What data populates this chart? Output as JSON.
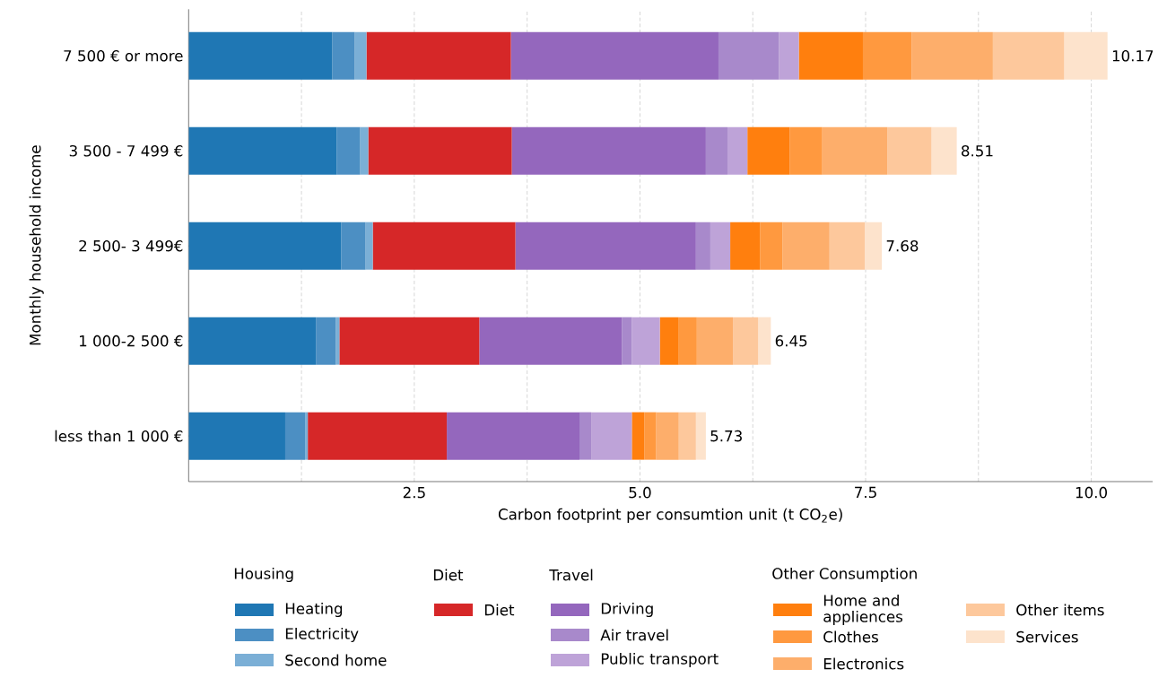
{
  "chart_data": {
    "type": "bar",
    "orientation": "horizontal",
    "stacked": true,
    "categories": [
      "7 500 € or more",
      "3 500 - 7 499 €",
      "2 500- 3 499€",
      "1 000-2 500 €",
      "less than 1 000 €"
    ],
    "xlabel": "Carbon footprint per consumtion unit (t CO$_{2}$e)",
    "ylabel": "Monthly household income",
    "xlim": [
      0,
      10.68
    ],
    "xticks": [
      {
        "value": 1.25,
        "label": null
      },
      2.5,
      {
        "value": 3.75,
        "label": null
      },
      {
        "value": 5,
        "label": "5.0"
      },
      {
        "value": 6.25,
        "label": null
      },
      7.5,
      {
        "value": 8.75,
        "label": null
      },
      {
        "value": 10,
        "label": "10.0"
      }
    ],
    "grid": "x",
    "legend": "bottom",
    "annotations": [
      "Housing",
      "Diet",
      "Travel",
      "Other Consumption"
    ],
    "totals": [
      "10.17",
      "8.51",
      "7.68",
      "6.45",
      "5.73"
    ],
    "series": [
      {
        "name": "Heating",
        "color": "#1f77b4",
        "values": [
          1.59,
          1.64,
          1.69,
          1.41,
          1.07
        ]
      },
      {
        "name": "Electricity",
        "color": "#4c8fc3",
        "values": [
          0.25,
          0.26,
          0.27,
          0.22,
          0.22
        ]
      },
      {
        "name": "Second home",
        "color": "#7bafd6",
        "values": [
          0.13,
          0.09,
          0.08,
          0.04,
          0.03
        ]
      },
      {
        "name": "Diet",
        "color": "#d62728",
        "values": [
          1.6,
          1.59,
          1.58,
          1.55,
          1.54
        ]
      },
      {
        "name": "Driving",
        "color": "#9467bd",
        "values": [
          2.3,
          2.15,
          2.0,
          1.58,
          1.47
        ]
      },
      {
        "name": "Air travel",
        "color": "#a889cb",
        "values": [
          0.67,
          0.24,
          0.16,
          0.11,
          0.13
        ]
      },
      {
        "name": "Public transport",
        "color": "#bea3d8",
        "values": [
          0.22,
          0.22,
          0.22,
          0.31,
          0.45
        ]
      },
      {
        "name": "Home and appliences",
        "color": "#ff7f0e",
        "values": [
          0.71,
          0.47,
          0.33,
          0.21,
          0.14
        ]
      },
      {
        "name": "Clothes",
        "color": "#ff993f",
        "values": [
          0.54,
          0.36,
          0.25,
          0.2,
          0.13
        ]
      },
      {
        "name": "Electronics",
        "color": "#fdae6b",
        "values": [
          0.9,
          0.72,
          0.52,
          0.4,
          0.25
        ]
      },
      {
        "name": "Other items",
        "color": "#fdc89c",
        "values": [
          0.79,
          0.49,
          0.39,
          0.28,
          0.19
        ]
      },
      {
        "name": "Services",
        "color": "#fde3cc",
        "values": [
          0.48,
          0.28,
          0.19,
          0.14,
          0.11
        ]
      }
    ]
  }
}
